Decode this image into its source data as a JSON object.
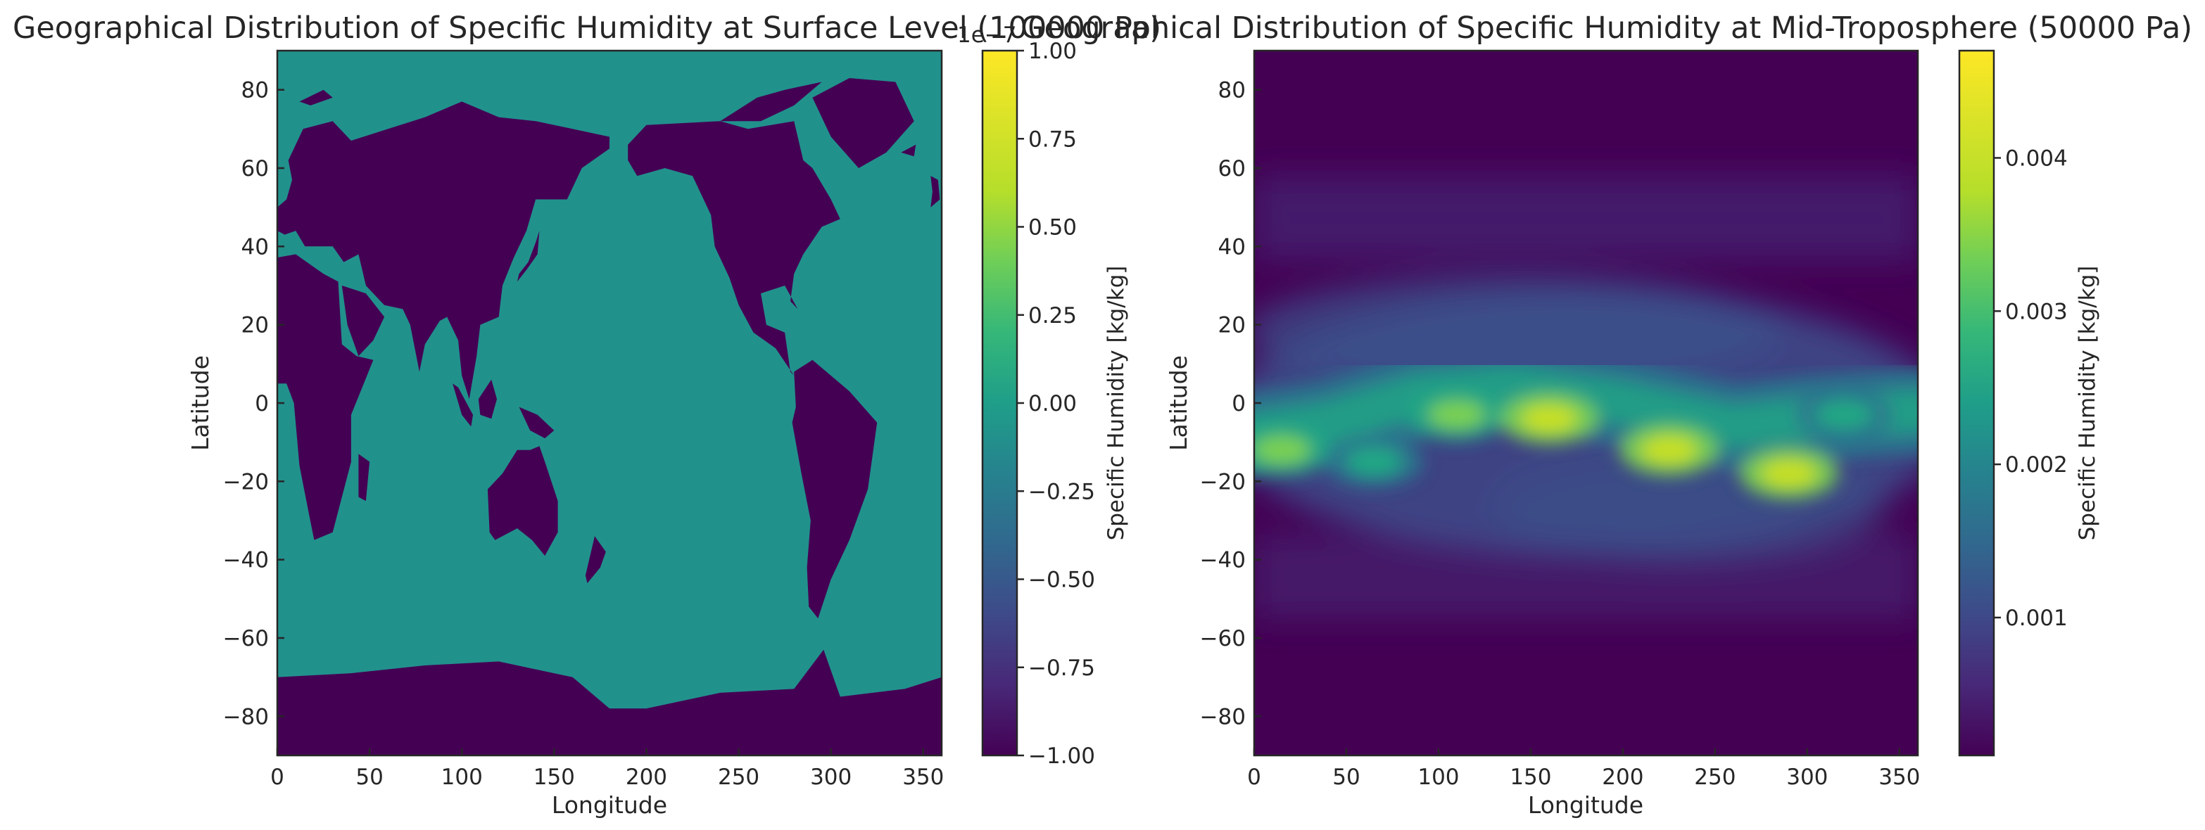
{
  "chart_data": [
    {
      "type": "heatmap",
      "title": "Geographical Distribution of Specific Humidity at Surface Level (100000 Pa)",
      "xlabel": "Longitude",
      "ylabel": "Latitude",
      "xlim": [
        0,
        360
      ],
      "ylim": [
        -90,
        90
      ],
      "xticks": [
        "0",
        "50",
        "100",
        "150",
        "200",
        "250",
        "300",
        "350"
      ],
      "yticks": [
        "80",
        "60",
        "40",
        "20",
        "0",
        "−20",
        "−40",
        "−60",
        "−80"
      ],
      "colorbar": {
        "label": "Specific Humidity [kg/kg]",
        "offset_text": "1e−7",
        "range": [
          -1.0,
          1.0
        ],
        "ticks": [
          "1.00",
          "0.75",
          "0.50",
          "0.25",
          "0.00",
          "−0.25",
          "−0.50",
          "−0.75",
          "−1.00"
        ],
        "colormap": "viridis"
      },
      "values_description_codes": {
        "ocean": 0.0,
        "land": -1.0
      }
    },
    {
      "type": "heatmap",
      "title": "Geographical Distribution of Specific Humidity at Mid-Troposphere (50000 Pa)",
      "xlabel": "Longitude",
      "ylabel": "Latitude",
      "xlim": [
        0,
        360
      ],
      "ylim": [
        -90,
        90
      ],
      "xticks": [
        "0",
        "50",
        "100",
        "150",
        "200",
        "250",
        "300",
        "350"
      ],
      "yticks": [
        "80",
        "60",
        "40",
        "20",
        "0",
        "−20",
        "−40",
        "−60",
        "−80"
      ],
      "colorbar": {
        "label": "Specific Humidity [kg/kg]",
        "range": [
          0.0001,
          0.0047
        ],
        "ticks": [
          "0.004",
          "0.003",
          "0.002",
          "0.001"
        ],
        "colormap": "viridis"
      },
      "moist_band_peaks": [
        {
          "lon": 15,
          "lat": -12,
          "value": 0.0036
        },
        {
          "lon": 65,
          "lat": -15,
          "value": 0.0031
        },
        {
          "lon": 110,
          "lat": -3,
          "value": 0.0041
        },
        {
          "lon": 160,
          "lat": -4,
          "value": 0.0046
        },
        {
          "lon": 225,
          "lat": -12,
          "value": 0.0045
        },
        {
          "lon": 290,
          "lat": -18,
          "value": 0.0046
        },
        {
          "lon": 320,
          "lat": -3,
          "value": 0.0033
        }
      ]
    }
  ],
  "colors": {
    "land": "#440154",
    "ocean": "#21918c"
  }
}
